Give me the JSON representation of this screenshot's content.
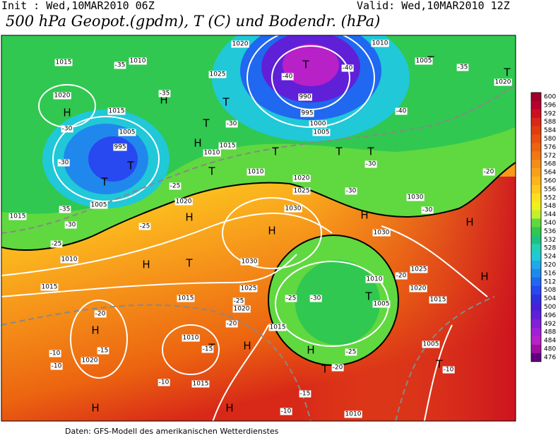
{
  "header": {
    "init": "Init : Wed,10MAR2010 06Z",
    "valid": "Valid: Wed,10MAR2010 12Z",
    "title": "500 hPa Geopot.(gpdm), T (C) und Bodendr. (hPa)"
  },
  "footer": "Daten: GFS-Modell des amerikanischen Wetterdienstes",
  "colorbar": {
    "levels": [
      600,
      596,
      592,
      588,
      584,
      580,
      576,
      572,
      568,
      564,
      560,
      556,
      552,
      548,
      544,
      540,
      536,
      532,
      528,
      524,
      520,
      516,
      512,
      508,
      504,
      500,
      496,
      492,
      488,
      484,
      480,
      476
    ],
    "colors": [
      "#a0002a",
      "#b80030",
      "#cc1020",
      "#d82818",
      "#e03c10",
      "#e85010",
      "#ec6410",
      "#f07814",
      "#f48c18",
      "#f8a01c",
      "#fcb41c",
      "#ffc81c",
      "#ffe020",
      "#f0f020",
      "#c0f030",
      "#60d840",
      "#30c850",
      "#20c080",
      "#20d0b0",
      "#20c8d8",
      "#20a8e8",
      "#2088ec",
      "#2068f0",
      "#2848f0",
      "#3030e0",
      "#4820d8",
      "#6020d8",
      "#8020d8",
      "#a020d8",
      "#b820c8",
      "#a010a0",
      "#600080"
    ]
  },
  "map": {
    "pressure_centers": [
      "H",
      "H",
      "H",
      "H",
      "H",
      "H",
      "H",
      "H",
      "H",
      "H",
      "H",
      "H",
      "H",
      "H",
      "T",
      "T",
      "T",
      "T",
      "T",
      "T",
      "T",
      "T",
      "T",
      "T",
      "T",
      "T",
      "T",
      "T",
      "T",
      "T"
    ],
    "isobar_labels": [
      1020,
      1015,
      1010,
      1025,
      995,
      1000,
      1005,
      990,
      1010,
      1005,
      1020,
      1015,
      1005,
      995,
      1010,
      1015,
      1010,
      1020,
      1025,
      1030,
      1030,
      1030,
      1025,
      1020,
      1015,
      1010,
      1005,
      1015,
      1030,
      1025,
      1020,
      1015,
      1010,
      1020,
      1015,
      1010,
      1005,
      1010,
      1015,
      1015,
      1005,
      1020,
      1020
    ],
    "temperature_labels": [
      -35,
      -35,
      -40,
      -40,
      -40,
      -35,
      -30,
      -30,
      -35,
      -30,
      -25,
      -25,
      -25,
      -30,
      -30,
      -30,
      -30,
      -20,
      -25,
      -30,
      -25,
      -20,
      -20,
      -25,
      -20,
      -20,
      -15,
      -15,
      -10,
      -10,
      -10,
      -15,
      -10,
      -10
    ]
  }
}
